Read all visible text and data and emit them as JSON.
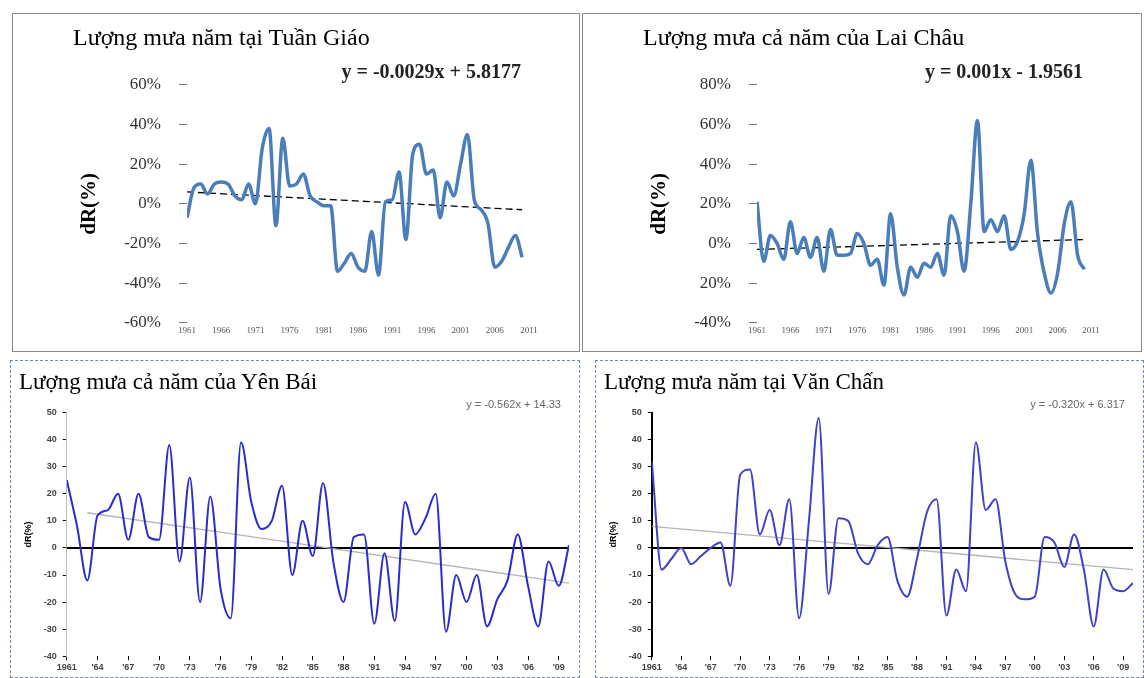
{
  "chart_data": [
    {
      "type": "line",
      "title": "Lượng mưa năm tại Tuần Giáo",
      "ylabel": "dR(%)",
      "annotations": [
        "y = -0.0029x + 5.8177"
      ],
      "marker": "none",
      "x": [
        1961,
        1962,
        1963,
        1964,
        1965,
        1966,
        1967,
        1968,
        1969,
        1970,
        1971,
        1972,
        1973,
        1974,
        1975,
        1976,
        1977,
        1978,
        1979,
        1980,
        1981,
        1982,
        1983,
        1984,
        1985,
        1986,
        1987,
        1988,
        1989,
        1990,
        1991,
        1992,
        1993,
        1994,
        1995,
        1996,
        1997,
        1998,
        1999,
        2000,
        2001,
        2002,
        2003,
        2004,
        2005,
        2006,
        2007,
        2008,
        2009,
        2010
      ],
      "series": [
        {
          "color": "#4a7ebb",
          "values": [
            -7,
            8,
            10,
            5,
            10,
            11,
            10,
            4,
            2,
            10,
            0,
            28,
            38,
            -11,
            33,
            9,
            10,
            15,
            4,
            1,
            -1,
            -1,
            -34,
            -30,
            -25,
            -32,
            -34,
            -14,
            -36,
            1,
            2,
            16,
            -18,
            25,
            30,
            15,
            17,
            -7,
            11,
            4,
            20,
            35,
            2,
            -3,
            -10,
            -32,
            -29,
            -22,
            -16,
            -27
          ]
        },
        {
          "type": "line",
          "x": [
            1961,
            2010
          ],
          "values": [
            6,
            -3
          ],
          "color": "#000000",
          "line_style": "dashed"
        }
      ],
      "xlim": [
        1961,
        2011
      ],
      "xticks": [
        1961,
        1966,
        1971,
        1976,
        1981,
        1986,
        1991,
        1996,
        2001,
        2006,
        2011
      ],
      "ylim": [
        -60,
        60
      ],
      "yticks": [
        {
          "value": -60,
          "label": "-60%"
        },
        {
          "value": -40,
          "label": "-40%"
        },
        {
          "value": -20,
          "label": "-20%"
        },
        {
          "value": 0,
          "label": "0%"
        },
        {
          "value": 20,
          "label": "20%"
        },
        {
          "value": 40,
          "label": "40%"
        },
        {
          "value": 60,
          "label": "60%"
        }
      ]
    },
    {
      "type": "line",
      "title": "Lượng mưa cả năm của Lai Châu",
      "ylabel": "dR(%)",
      "annotations": [
        "y = 0.001x - 1.9561"
      ],
      "marker": "none",
      "x": [
        1961,
        1962,
        1963,
        1964,
        1965,
        1966,
        1967,
        1968,
        1969,
        1970,
        1971,
        1972,
        1973,
        1974,
        1975,
        1976,
        1977,
        1978,
        1979,
        1980,
        1981,
        1982,
        1983,
        1984,
        1985,
        1986,
        1987,
        1988,
        1989,
        1990,
        1991,
        1992,
        1993,
        1994,
        1995,
        1996,
        1997,
        1998,
        1999,
        2000,
        2001,
        2002,
        2003,
        2004,
        2005,
        2006,
        2007,
        2008,
        2009,
        2010
      ],
      "series": [
        {
          "color": "#4a7ebb",
          "values": [
            21,
            -9,
            4,
            0,
            -8,
            11,
            -5,
            3,
            -7,
            3,
            -14,
            7,
            -6,
            -6,
            -5,
            5,
            0,
            -11,
            -8,
            -21,
            15,
            -12,
            -26,
            -12,
            -17,
            -10,
            -12,
            -5,
            -16,
            14,
            6,
            -14,
            20,
            62,
            6,
            12,
            6,
            14,
            -3,
            1,
            15,
            42,
            5,
            -15,
            -25,
            -15,
            10,
            21,
            -6,
            -13
          ]
        },
        {
          "type": "line",
          "x": [
            1961,
            2010
          ],
          "values": [
            -3,
            2
          ],
          "color": "#000000",
          "line_style": "dashed"
        }
      ],
      "xlim": [
        1961,
        2011
      ],
      "xticks": [
        1961,
        1966,
        1971,
        1976,
        1981,
        1986,
        1991,
        1996,
        2001,
        2006,
        2011
      ],
      "ylim": [
        -40,
        80
      ],
      "yticks": [
        {
          "value": -40,
          "label": "-40%"
        },
        {
          "value": -20,
          "label": "20%"
        },
        {
          "value": 0,
          "label": "0%"
        },
        {
          "value": 20,
          "label": "20%"
        },
        {
          "value": 40,
          "label": "40%"
        },
        {
          "value": 60,
          "label": "60%"
        },
        {
          "value": 80,
          "label": "80%"
        }
      ]
    },
    {
      "type": "line",
      "title": "Lượng mưa cả năm của Yên Bái",
      "ylabel": "dR(%)",
      "annotations": [
        "y = -0.562x + 14.33"
      ],
      "marker": "none",
      "x": [
        1961,
        1962,
        1963,
        1964,
        1965,
        1966,
        1967,
        1968,
        1969,
        1970,
        1971,
        1972,
        1973,
        1974,
        1975,
        1976,
        1977,
        1978,
        1979,
        1980,
        1981,
        1982,
        1983,
        1984,
        1985,
        1986,
        1987,
        1988,
        1989,
        1990,
        1991,
        1992,
        1993,
        1994,
        1995,
        1996,
        1997,
        1998,
        1999,
        2000,
        2001,
        2002,
        2003,
        2004,
        2005,
        2006,
        2007,
        2008,
        2009,
        2010
      ],
      "series": [
        {
          "color": "#2b2bd0",
          "values": [
            25,
            8,
            -12,
            12,
            14,
            20,
            3,
            20,
            4,
            3,
            38,
            -5,
            26,
            -20,
            19,
            -15,
            -26,
            39,
            17,
            7,
            10,
            23,
            -10,
            10,
            -3,
            24,
            -5,
            -20,
            4,
            5,
            -28,
            -2,
            -27,
            17,
            5,
            11,
            20,
            -31,
            -10,
            -20,
            -10,
            -29,
            -19,
            -12,
            5,
            -14,
            -29,
            -5,
            -14,
            1
          ]
        },
        {
          "type": "line",
          "x": [
            1963,
            2010
          ],
          "values": [
            13,
            -13
          ],
          "color": "#b4b4b4",
          "line_style": "solid"
        }
      ],
      "xlim": [
        1961,
        2010
      ],
      "xticks": [
        1961,
        {
          "value": 1964,
          "label": "'64"
        },
        {
          "value": 1967,
          "label": "'67"
        },
        {
          "value": 1970,
          "label": "'70"
        },
        {
          "value": 1973,
          "label": "'73"
        },
        {
          "value": 1976,
          "label": "'76"
        },
        {
          "value": 1979,
          "label": "'79"
        },
        {
          "value": 1982,
          "label": "'82"
        },
        {
          "value": 1985,
          "label": "'85"
        },
        {
          "value": 1988,
          "label": "'88"
        },
        {
          "value": 1991,
          "label": "'91"
        },
        {
          "value": 1994,
          "label": "'94"
        },
        {
          "value": 1997,
          "label": "'97"
        },
        {
          "value": 2000,
          "label": "'00"
        },
        {
          "value": 2003,
          "label": "'03"
        },
        {
          "value": 2006,
          "label": "'06"
        },
        {
          "value": 2009,
          "label": "'09"
        }
      ],
      "ylim": [
        -40,
        50
      ],
      "yticks": [
        -40,
        -30,
        -20,
        -10,
        0,
        10,
        20,
        30,
        40,
        50
      ]
    },
    {
      "type": "line",
      "title": "Lượng mưa năm tại Văn Chấn",
      "ylabel": "dR(%)",
      "annotations": [
        "y = -0.320x + 6.317"
      ],
      "marker": "none",
      "x": [
        1961,
        1962,
        1963,
        1964,
        1965,
        1966,
        1967,
        1968,
        1969,
        1970,
        1971,
        1972,
        1973,
        1974,
        1975,
        1976,
        1977,
        1978,
        1979,
        1980,
        1981,
        1982,
        1983,
        1984,
        1985,
        1986,
        1987,
        1988,
        1989,
        1990,
        1991,
        1992,
        1993,
        1994,
        1995,
        1996,
        1997,
        1998,
        1999,
        2000,
        2001,
        2002,
        2003,
        2004,
        2005,
        2006,
        2007,
        2008,
        2009,
        2010
      ],
      "series": [
        {
          "color": "#4040c8",
          "values": [
            32,
            -8,
            -4,
            0,
            -6,
            -3,
            0,
            2,
            -14,
            27,
            29,
            5,
            14,
            1,
            18,
            -26,
            10,
            48,
            -17,
            11,
            10,
            -2,
            -6,
            1,
            4,
            -12,
            -18,
            -4,
            13,
            18,
            -25,
            -8,
            -16,
            39,
            14,
            18,
            -5,
            -17,
            -19,
            -18,
            4,
            2,
            -7,
            5,
            -8,
            -29,
            -8,
            -15,
            -16,
            -13
          ]
        },
        {
          "type": "line",
          "x": [
            1961,
            2010
          ],
          "values": [
            8,
            -8
          ],
          "color": "#b4b4b4",
          "line_style": "solid"
        }
      ],
      "xlim": [
        1961,
        2010
      ],
      "xticks": [
        1961,
        {
          "value": 1964,
          "label": "'64"
        },
        {
          "value": 1967,
          "label": "'67"
        },
        {
          "value": 1970,
          "label": "'70"
        },
        {
          "value": 1973,
          "label": "'73"
        },
        {
          "value": 1976,
          "label": "'76"
        },
        {
          "value": 1979,
          "label": "'79"
        },
        {
          "value": 1982,
          "label": "'82"
        },
        {
          "value": 1985,
          "label": "'85"
        },
        {
          "value": 1988,
          "label": "'88"
        },
        {
          "value": 1991,
          "label": "'91"
        },
        {
          "value": 1994,
          "label": "'94"
        },
        {
          "value": 1997,
          "label": "'97"
        },
        {
          "value": 2000,
          "label": "'00"
        },
        {
          "value": 2003,
          "label": "'03"
        },
        {
          "value": 2006,
          "label": "'06"
        },
        {
          "value": 2009,
          "label": "'09"
        }
      ],
      "ylim": [
        -40,
        50
      ],
      "yticks": [
        -40,
        -30,
        -20,
        -10,
        0,
        10,
        20,
        30,
        40,
        50
      ]
    }
  ]
}
